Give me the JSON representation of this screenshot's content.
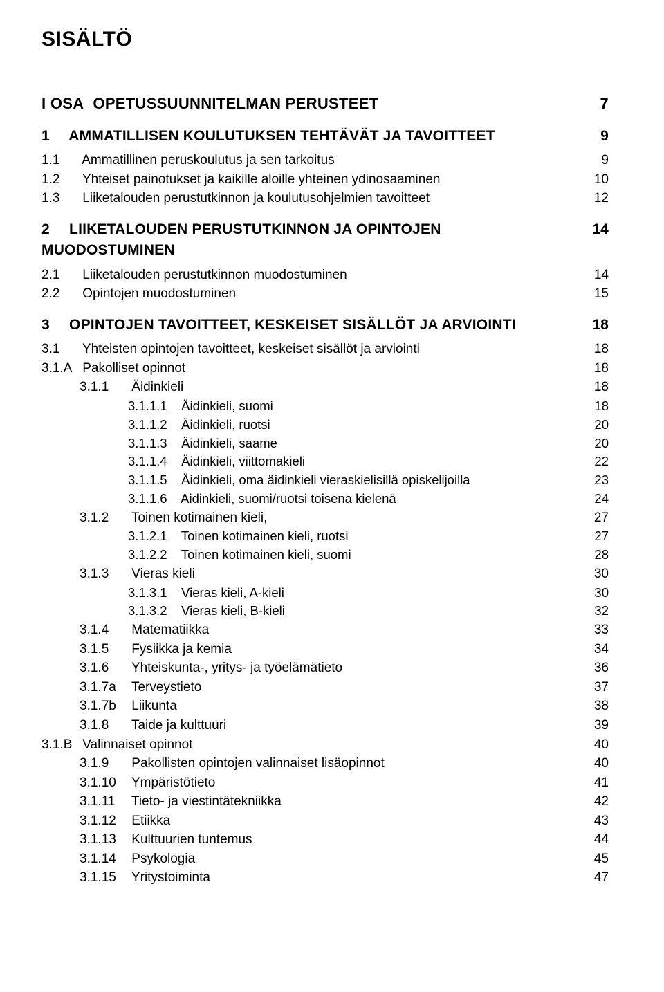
{
  "title": "SISÄLTÖ",
  "toc": [
    {
      "level": "part",
      "num": "I OSA",
      "text": "OPETUSSUUNNITELMAN PERUSTEET",
      "page": "7"
    },
    {
      "level": "chap",
      "num": "1",
      "text": "AMMATILLISEN KOULUTUKSEN TEHTÄVÄT JA TAVOITTEET",
      "page": "9"
    },
    {
      "level": "sec",
      "num": "1.1",
      "text": "Ammatillinen peruskoulutus ja sen tarkoitus",
      "page": "9"
    },
    {
      "level": "sec",
      "num": "1.2",
      "text": "Yhteiset painotukset ja kaikille aloille yhteinen ydinosaaminen",
      "page": "10"
    },
    {
      "level": "sec",
      "num": "1.3",
      "text": "Liiketalouden perustutkinnon ja koulutusohjelmien tavoitteet",
      "page": "12"
    },
    {
      "level": "chap",
      "num": "2",
      "text": "LIIKETALOUDEN PERUSTUTKINNON JA OPINTOJEN MUODOSTUMINEN",
      "page": "14"
    },
    {
      "level": "sec",
      "num": "2.1",
      "text": "Liiketalouden perustutkinnon muodostuminen",
      "page": "14"
    },
    {
      "level": "sec",
      "num": "2.2",
      "text": "Opintojen muodostuminen",
      "page": "15"
    },
    {
      "level": "chap",
      "num": "3",
      "text": "OPINTOJEN TAVOITTEET, KESKEISET SISÄLLÖT JA ARVIOINTI",
      "page": "18"
    },
    {
      "level": "sec",
      "num": "3.1",
      "text": "Yhteisten opintojen tavoitteet, keskeiset sisällöt ja arviointi",
      "page": "18"
    },
    {
      "level": "sec",
      "num": "3.1.A",
      "text": "Pakolliset opinnot",
      "page": "18"
    },
    {
      "level": "sub",
      "num": "3.1.1",
      "text": "Äidinkieli",
      "page": "18"
    },
    {
      "level": "subsub",
      "num": "3.1.1.1",
      "text": "Äidinkieli, suomi",
      "page": "18"
    },
    {
      "level": "subsub",
      "num": "3.1.1.2",
      "text": "Äidinkieli, ruotsi",
      "page": "20"
    },
    {
      "level": "subsub",
      "num": "3.1.1.3",
      "text": "Äidinkieli, saame",
      "page": "20"
    },
    {
      "level": "subsub",
      "num": "3.1.1.4",
      "text": "Äidinkieli, viittomakieli",
      "page": "22"
    },
    {
      "level": "subsub",
      "num": "3.1.1.5",
      "text": "Äidinkieli, oma äidinkieli vieraskielisillä opiskelijoilla",
      "page": "23"
    },
    {
      "level": "subsub",
      "num": "3.1.1.6",
      "text": "Aidinkieli, suomi/ruotsi toisena kielenä",
      "page": "24"
    },
    {
      "level": "sub",
      "num": "3.1.2",
      "text": "Toinen kotimainen kieli,",
      "page": "27"
    },
    {
      "level": "subsub",
      "num": "3.1.2.1",
      "text": "Toinen kotimainen kieli, ruotsi",
      "page": "27"
    },
    {
      "level": "subsub",
      "num": "3.1.2.2",
      "text": "Toinen kotimainen kieli, suomi",
      "page": "28"
    },
    {
      "level": "sub",
      "num": "3.1.3",
      "text": "Vieras kieli",
      "page": "30"
    },
    {
      "level": "subsub",
      "num": "3.1.3.1",
      "text": "Vieras kieli, A-kieli",
      "page": "30"
    },
    {
      "level": "subsub",
      "num": "3.1.3.2",
      "text": "Vieras kieli, B-kieli",
      "page": "32"
    },
    {
      "level": "sub",
      "num": "3.1.4",
      "text": "Matematiikka",
      "page": "33"
    },
    {
      "level": "sub",
      "num": "3.1.5",
      "text": "Fysiikka ja kemia",
      "page": "34"
    },
    {
      "level": "sub",
      "num": "3.1.6",
      "text": "Yhteiskunta-, yritys- ja työelämätieto",
      "page": "36"
    },
    {
      "level": "sub",
      "num": "3.1.7a",
      "text": "Terveystieto",
      "page": "37"
    },
    {
      "level": "sub",
      "num": "3.1.7b",
      "text": "Liikunta",
      "page": "38"
    },
    {
      "level": "sub",
      "num": "3.1.8",
      "text": "Taide ja kulttuuri",
      "page": "39"
    },
    {
      "level": "sec",
      "num": "3.1.B",
      "text": "Valinnaiset opinnot",
      "page": "40"
    },
    {
      "level": "sub",
      "num": "3.1.9",
      "text": "Pakollisten opintojen valinnaiset lisäopinnot",
      "page": "40"
    },
    {
      "level": "sub",
      "num": "3.1.10",
      "text": "Ympäristötieto",
      "page": "41"
    },
    {
      "level": "sub",
      "num": "3.1.11",
      "text": "Tieto- ja viestintätekniikka",
      "page": "42"
    },
    {
      "level": "sub",
      "num": "3.1.12",
      "text": "Etiikka",
      "page": "43"
    },
    {
      "level": "sub",
      "num": "3.1.13",
      "text": "Kulttuurien tuntemus",
      "page": "44"
    },
    {
      "level": "sub",
      "num": "3.1.14",
      "text": "Psykologia",
      "page": "45"
    },
    {
      "level": "sub",
      "num": "3.1.15",
      "text": "Yritystoiminta",
      "page": "47"
    }
  ]
}
